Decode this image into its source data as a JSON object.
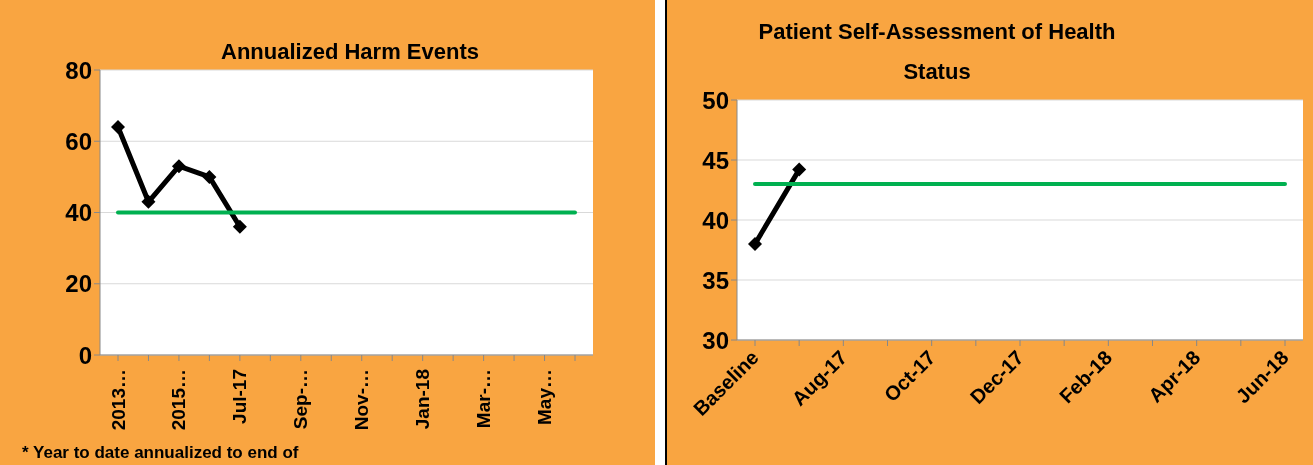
{
  "chart_data": [
    {
      "type": "line",
      "title": "Annualized Harm Events",
      "categories": [
        "2013…",
        null,
        "2015…",
        null,
        "Jul-17",
        null,
        "Sep-…",
        null,
        "Nov-…",
        null,
        "Jan-18",
        null,
        "Mar-…",
        null,
        "May…",
        null
      ],
      "series": [
        {
          "color": "#000000",
          "marker": "diamond",
          "values": [
            64,
            43,
            53,
            50,
            36,
            null,
            null,
            null,
            null,
            null,
            null,
            null,
            null,
            null,
            null,
            null
          ]
        },
        {
          "color": "#00b050",
          "marker": "none",
          "values": [
            40,
            40,
            40,
            40,
            40,
            40,
            40,
            40,
            40,
            40,
            40,
            40,
            40,
            40,
            40,
            40
          ]
        }
      ],
      "ylim": [
        0,
        80
      ],
      "yticks": [
        0,
        20,
        40,
        60,
        80
      ],
      "grid": "y",
      "annotations": [
        "* Year to date annualized to end of"
      ]
    },
    {
      "type": "line",
      "title": "Patient Self-Assessment of Health Status",
      "categories": [
        "Baseline",
        null,
        "Aug-17",
        null,
        "Oct-17",
        null,
        "Dec-17",
        null,
        "Feb-18",
        null,
        "Apr-18",
        null,
        "Jun-18"
      ],
      "series": [
        {
          "color": "#000000",
          "marker": "diamond",
          "values": [
            38,
            44.2,
            null,
            null,
            null,
            null,
            null,
            null,
            null,
            null,
            null,
            null,
            null
          ]
        },
        {
          "color": "#00b050",
          "marker": "none",
          "values": [
            43,
            43,
            43,
            43,
            43,
            43,
            43,
            43,
            43,
            43,
            43,
            43,
            43
          ]
        }
      ],
      "ylim": [
        30,
        50
      ],
      "yticks": [
        30,
        35,
        40,
        45,
        50
      ],
      "grid": "y"
    }
  ]
}
